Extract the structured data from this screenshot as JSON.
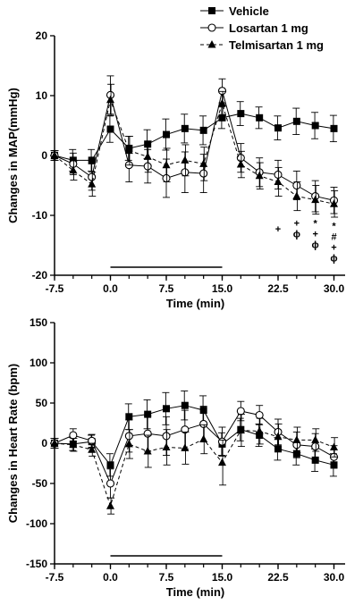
{
  "chart_data": [
    {
      "type": "line",
      "xlabel": "Time (min)",
      "ylabel": "Changes in MAP(mmHg)",
      "xlim": [
        -7.5,
        31.5
      ],
      "ylim": [
        -20,
        20
      ],
      "xticks": [
        "-7.5",
        "0.0",
        "7.5",
        "15.0",
        "22.5",
        "30.0"
      ],
      "xtick_values": [
        -7.5,
        0,
        7.5,
        15,
        22.5,
        30
      ],
      "yticks": [
        "20",
        "10",
        "0",
        "-10",
        "-20"
      ],
      "ytick_values": [
        20,
        10,
        0,
        -10,
        -20
      ],
      "x": [
        -7.5,
        -5,
        -2.5,
        0,
        2.5,
        5,
        7.5,
        10,
        12.5,
        15,
        17.5,
        20,
        22.5,
        25,
        27.5,
        30
      ],
      "infusion_bar": [
        0,
        15
      ],
      "series": [
        {
          "name": "Vehicle",
          "marker": "square",
          "line": "solid",
          "values": [
            0,
            -0.8,
            -0.8,
            4.4,
            1.2,
            1.9,
            3.5,
            4.5,
            4.2,
            6.3,
            7.0,
            6.3,
            4.6,
            5.7,
            5.0,
            4.5
          ],
          "errors": [
            0.8,
            1.8,
            1.8,
            2.2,
            2.0,
            2.4,
            2.6,
            2.4,
            2.4,
            1.8,
            2.0,
            1.8,
            2.0,
            2.2,
            2.2,
            2.2
          ]
        },
        {
          "name": "Losartan 1 mg",
          "marker": "circle",
          "line": "solid",
          "values": [
            0,
            -1.4,
            -3.6,
            10.1,
            -1.6,
            -1.8,
            -3.8,
            -2.8,
            -3.0,
            10.8,
            -0.4,
            -2.8,
            -3.2,
            -5.0,
            -6.8,
            -7.5
          ],
          "errors": [
            0.8,
            1.8,
            2.2,
            3.2,
            2.8,
            2.8,
            3.2,
            3.4,
            3.2,
            2.0,
            2.4,
            2.4,
            2.4,
            2.4,
            2.6,
            2.2
          ]
        },
        {
          "name": "Telmisartan 1 mg",
          "marker": "triangle",
          "line": "dashed",
          "values": [
            0,
            -2.5,
            -4.8,
            9.3,
            0.8,
            -0.2,
            -1.6,
            -0.8,
            -1.4,
            8.7,
            -1.5,
            -3.4,
            -4.4,
            -6.8,
            -7.4,
            -8.1
          ],
          "errors": [
            0.8,
            1.6,
            2.0,
            2.6,
            2.4,
            2.6,
            2.8,
            2.6,
            2.8,
            2.0,
            2.2,
            2.2,
            2.4,
            2.4,
            2.4,
            2.2
          ]
        }
      ],
      "annotations": [
        {
          "x": 22.5,
          "y": -11.5,
          "symbols": [
            "+"
          ]
        },
        {
          "x": 25,
          "y": -10.5,
          "symbols": [
            "+",
            "ϕ"
          ]
        },
        {
          "x": 27.5,
          "y": -10.5,
          "symbols": [
            "*",
            "+",
            "ϕ"
          ]
        },
        {
          "x": 30,
          "y": -11.0,
          "symbols": [
            "*",
            "#",
            "+",
            "ϕ"
          ]
        }
      ]
    },
    {
      "type": "line",
      "xlabel": "Time (min)",
      "ylabel": "Changes in Heart Rate (bpm)",
      "xlim": [
        -7.5,
        31.5
      ],
      "ylim": [
        -150,
        150
      ],
      "xticks": [
        "-7.5",
        "0.0",
        "7.5",
        "15.0",
        "22.5",
        "30.0"
      ],
      "xtick_values": [
        -7.5,
        0,
        7.5,
        15,
        22.5,
        30
      ],
      "yticks": [
        "150",
        "100",
        "50",
        "0",
        "-50",
        "-100",
        "-150"
      ],
      "ytick_values": [
        150,
        100,
        50,
        0,
        -50,
        -100,
        -150
      ],
      "x": [
        -7.5,
        -5,
        -2.5,
        0,
        2.5,
        5,
        7.5,
        10,
        12.5,
        15,
        17.5,
        20,
        22.5,
        25,
        27.5,
        30
      ],
      "infusion_bar": [
        0,
        15
      ],
      "series": [
        {
          "name": "Vehicle",
          "marker": "square",
          "line": "solid",
          "values": [
            0,
            -1,
            2,
            -27,
            33,
            36,
            43,
            47,
            41,
            -1,
            17,
            10,
            -7,
            -13,
            -21,
            -27
          ],
          "errors": [
            6,
            8,
            8,
            14,
            16,
            18,
            20,
            18,
            18,
            14,
            14,
            14,
            14,
            14,
            14,
            14
          ]
        },
        {
          "name": "Losartan 1 mg",
          "marker": "circle",
          "line": "solid",
          "values": [
            0,
            10,
            3,
            -50,
            9,
            12,
            9,
            17,
            24,
            2,
            40,
            35,
            14,
            -2,
            -4,
            -17
          ],
          "errors": [
            6,
            8,
            8,
            18,
            20,
            22,
            24,
            24,
            22,
            18,
            12,
            12,
            16,
            16,
            16,
            14
          ]
        },
        {
          "name": "Telmisartan 1 mg",
          "marker": "triangle",
          "line": "dashed",
          "values": [
            0,
            -2,
            -8,
            -78,
            -1,
            -10,
            -5,
            -6,
            5,
            -24,
            16,
            15,
            8,
            4,
            4,
            -5
          ],
          "errors": [
            6,
            8,
            8,
            10,
            18,
            20,
            22,
            20,
            18,
            28,
            20,
            16,
            16,
            16,
            14,
            12
          ]
        }
      ],
      "annotations": []
    }
  ]
}
